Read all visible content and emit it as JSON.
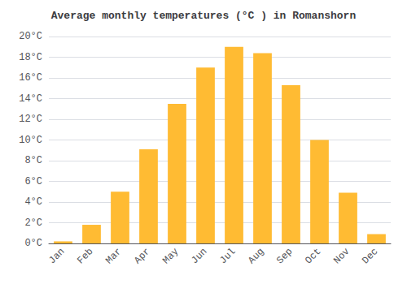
{
  "chart_data": {
    "type": "bar",
    "title": "Average monthly temperatures (°C ) in Romanshorn",
    "categories": [
      "Jan",
      "Feb",
      "Mar",
      "Apr",
      "May",
      "Jun",
      "Jul",
      "Aug",
      "Sep",
      "Oct",
      "Nov",
      "Dec"
    ],
    "values": [
      0.2,
      1.8,
      5.0,
      9.1,
      13.5,
      17.0,
      19.0,
      18.4,
      15.3,
      10.0,
      4.9,
      0.9
    ],
    "color": "#FFBB33",
    "ylim": [
      0,
      20
    ],
    "yticks": [
      {
        "value": 0,
        "label": "0°C"
      },
      {
        "value": 2,
        "label": "2°C"
      },
      {
        "value": 4,
        "label": "4°C"
      },
      {
        "value": 6,
        "label": "6°C"
      },
      {
        "value": 8,
        "label": "8°C"
      },
      {
        "value": 10,
        "label": "10°C"
      },
      {
        "value": 12,
        "label": "12°C"
      },
      {
        "value": 14,
        "label": "14°C"
      },
      {
        "value": 16,
        "label": "16°C"
      },
      {
        "value": 18,
        "label": "18°C"
      },
      {
        "value": 20,
        "label": "20°C"
      }
    ],
    "grid": true
  }
}
